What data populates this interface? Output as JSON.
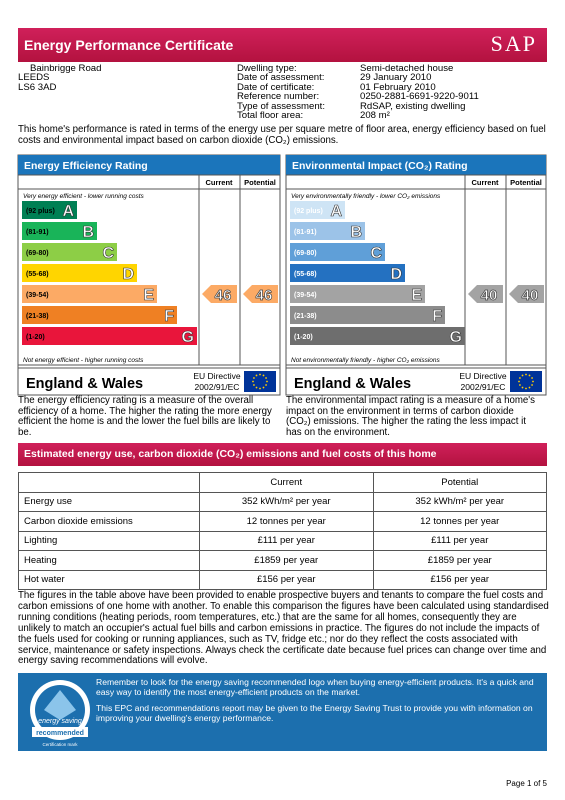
{
  "header": {
    "title": "Energy Performance Certificate",
    "logo": "SAP"
  },
  "address": [
    "Bainbrigge Road",
    "LEEDS",
    "LS6 3AD"
  ],
  "details": [
    {
      "label": "Dwelling type:",
      "value": "Semi-detached house"
    },
    {
      "label": "Date of assessment:",
      "value": "29 January 2010"
    },
    {
      "label": "Date of certificate:",
      "value": "01 February 2010"
    },
    {
      "label": "Reference number:",
      "value": "0250-2881-6691-9220-9011"
    },
    {
      "label": "Type of assessment:",
      "value": "RdSAP, existing dwelling"
    },
    {
      "label": "Total floor area:",
      "value": "208 m²"
    }
  ],
  "intro": "This home's performance is rated in terms of the energy use per square metre of floor area, energy efficiency based on fuel costs and environmental impact based on carbon dioxide (CO₂) emissions.",
  "ratings": [
    {
      "title": "Energy Efficiency Rating",
      "current_header": "Current",
      "potential_header": "Potential",
      "top_note": "Very energy efficient - lower running costs",
      "bottom_note": "Not energy efficient - higher running costs",
      "bands": [
        {
          "range": "(92 plus)",
          "letter": "A",
          "color": "#008054"
        },
        {
          "range": "(81-91)",
          "letter": "B",
          "color": "#19b459"
        },
        {
          "range": "(69-80)",
          "letter": "C",
          "color": "#8dce46"
        },
        {
          "range": "(55-68)",
          "letter": "D",
          "color": "#ffd500"
        },
        {
          "range": "(39-54)",
          "letter": "E",
          "color": "#fcaa65"
        },
        {
          "range": "(21-38)",
          "letter": "F",
          "color": "#ef8023"
        },
        {
          "range": "(1-20)",
          "letter": "G",
          "color": "#e9153b"
        }
      ],
      "current": 46,
      "potential": 46,
      "region": "England & Wales",
      "directive_1": "EU Directive",
      "directive_2": "2002/91/EC",
      "description": "The energy efficiency rating is a measure of the overall efficiency of a home. The higher the rating the more energy efficient the home is and the lower the fuel bills are likely to be."
    },
    {
      "title": "Environmental Impact (CO₂) Rating",
      "current_header": "Current",
      "potential_header": "Potential",
      "top_note": "Very environmentally friendly - lower CO₂ emissions",
      "bottom_note": "Not environmentally friendly - higher CO₂ emissions",
      "bands": [
        {
          "range": "(92 plus)",
          "letter": "A",
          "color": "#cee4f5"
        },
        {
          "range": "(81-91)",
          "letter": "B",
          "color": "#9cc3e8"
        },
        {
          "range": "(69-80)",
          "letter": "C",
          "color": "#5f9fd8"
        },
        {
          "range": "(55-68)",
          "letter": "D",
          "color": "#2471c1"
        },
        {
          "range": "(39-54)",
          "letter": "E",
          "color": "#a3a3a3"
        },
        {
          "range": "(21-38)",
          "letter": "F",
          "color": "#8c8c8c"
        },
        {
          "range": "(1-20)",
          "letter": "G",
          "color": "#6e6e6e"
        }
      ],
      "current": 40,
      "potential": 40,
      "region": "England & Wales",
      "directive_1": "EU Directive",
      "directive_2": "2002/91/EC",
      "description": "The environmental impact rating is a measure of a home's impact on the environment in terms of carbon dioxide (CO₂) emissions. The higher the rating the less impact it has on the environment."
    }
  ],
  "estimates": {
    "title": "Estimated energy use, carbon dioxide (CO₂) emissions and fuel costs of this home",
    "columns": [
      "Current",
      "Potential"
    ],
    "rows": [
      [
        "Energy use",
        "352 kWh/m² per year",
        "352 kWh/m² per year"
      ],
      [
        "Carbon dioxide emissions",
        "12 tonnes per year",
        "12 tonnes per year"
      ],
      [
        "Lighting",
        "£111 per year",
        "£111 per year"
      ],
      [
        "Heating",
        "£1859 per year",
        "£1859 per year"
      ],
      [
        "Hot water",
        "£156 per year",
        "£156 per year"
      ]
    ]
  },
  "note": "The figures in the table above have been provided to enable prospective buyers and tenants to compare the fuel costs and carbon emissions of one home with another. To enable this comparison the figures have been calculated using standardised running conditions (heating periods, room temperatures, etc.) that are the same for all homes, consequently they are unlikely to match an occupier's actual fuel bills and carbon emissions in practice. The figures do not include the impacts of the fuels used for cooking or running appliances, such as TV, fridge etc.; nor do they reflect the costs associated with service, maintenance or safety inspections. Always check the certificate date because fuel prices can change over time and energy saving recommendations will evolve.",
  "energy_saving": {
    "logo_top": "energy saving",
    "logo_bottom": "recommended",
    "caption": "Certification mark",
    "text_1": "Remember to look for the energy saving recommended logo when buying energy-efficient products. It's a quick and easy way to identify the most energy-efficient products on the market.",
    "text_2": "This EPC and recommendations report may be given to the Energy Saving Trust to provide you with information on improving your dwelling's energy performance."
  },
  "footer": "Page 1 of 5"
}
